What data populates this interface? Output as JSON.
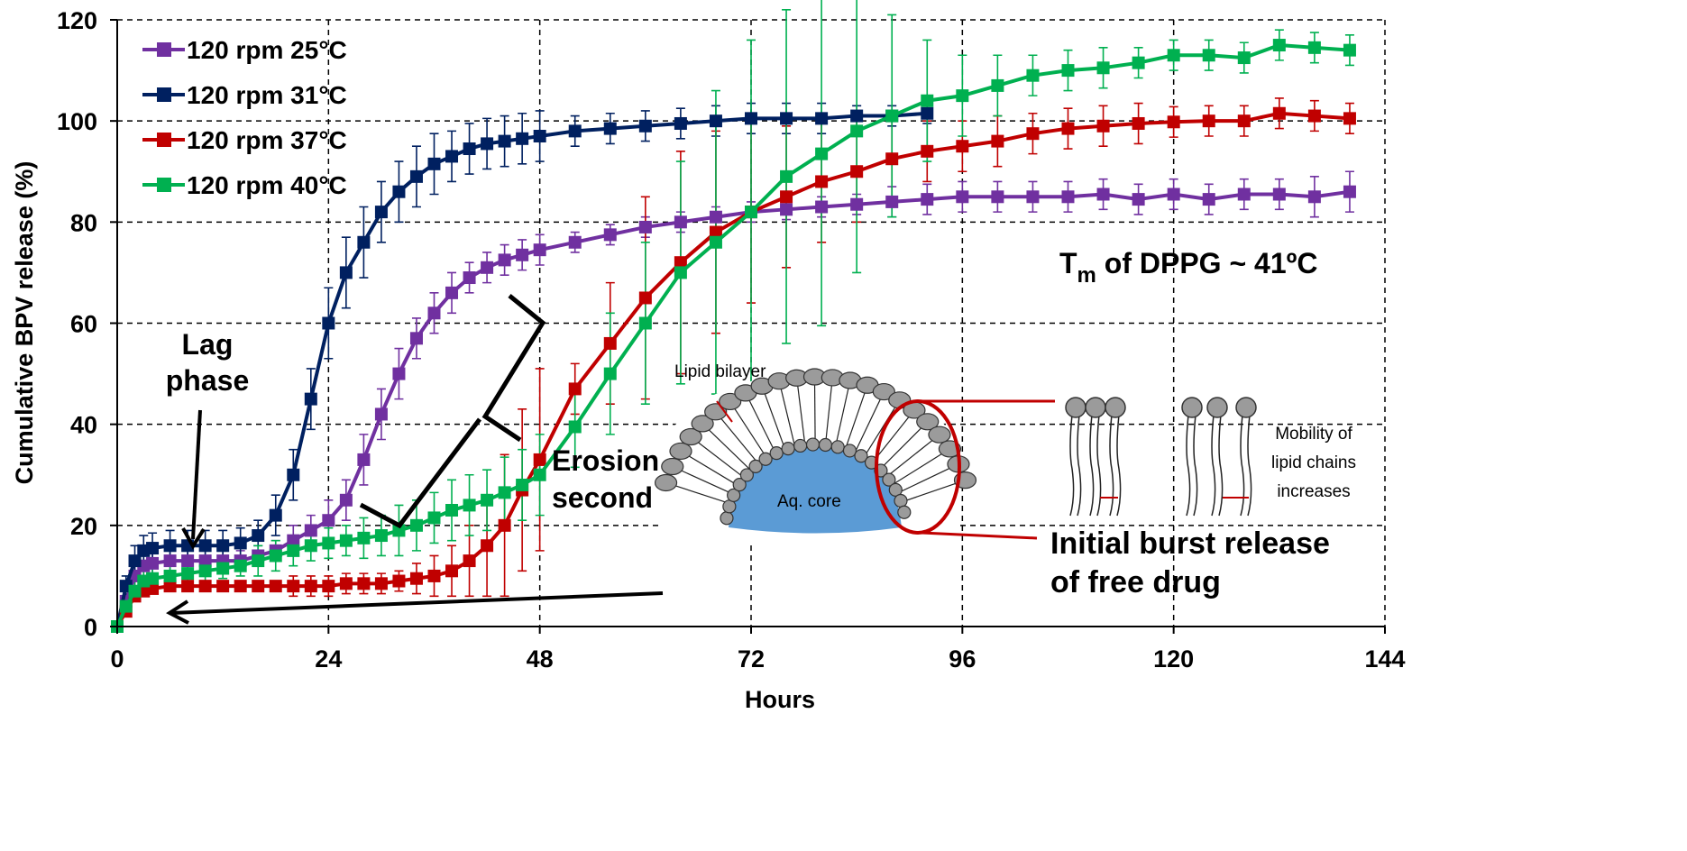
{
  "chart_data": {
    "type": "line",
    "xlabel": "Hours",
    "ylabel": "Cumulative BPV release (%)",
    "xlim": [
      0,
      144
    ],
    "xticks": [
      0,
      24,
      48,
      72,
      96,
      120,
      144
    ],
    "ylim": [
      0,
      120
    ],
    "yticks": [
      0,
      20,
      40,
      60,
      80,
      100,
      120
    ],
    "grid": true,
    "legend": "upper left",
    "x": [
      0,
      1,
      2,
      3,
      4,
      6,
      8,
      10,
      12,
      14,
      16,
      18,
      20,
      22,
      24,
      26,
      28,
      30,
      32,
      34,
      36,
      38,
      40,
      42,
      44,
      46,
      48,
      52,
      56,
      60,
      64,
      68,
      72,
      76,
      80,
      84,
      88,
      92,
      96,
      100,
      104,
      108,
      112,
      116,
      120,
      124,
      128,
      132,
      136,
      140
    ],
    "series": [
      {
        "name": "120 rpm 25°C",
        "color": "#7030a0",
        "values": [
          0,
          5,
          10,
          12,
          12.5,
          13,
          13,
          13,
          13,
          13,
          14,
          15,
          17,
          19,
          21,
          25,
          33,
          42,
          50,
          57,
          62,
          66,
          69,
          71,
          72.5,
          73.5,
          74.5,
          76,
          77.5,
          79,
          80,
          81,
          82,
          82.5,
          83,
          83.5,
          84,
          84.5,
          85,
          85,
          85,
          85,
          85.5,
          84.5,
          85.5,
          84.5,
          85.5,
          85.5,
          85,
          86
        ],
        "errors": [
          0,
          2,
          2,
          2,
          2,
          2,
          2,
          2,
          2,
          2,
          2,
          2,
          3,
          3,
          4,
          4,
          5,
          5,
          5,
          4,
          4,
          4,
          3,
          3,
          3,
          3,
          3,
          2,
          2,
          2,
          2,
          2,
          2,
          2,
          2,
          2,
          3,
          3,
          3,
          3,
          3,
          3,
          3,
          3,
          3,
          3,
          3,
          3,
          4,
          4
        ]
      },
      {
        "name": "120 rpm 31°C",
        "color": "#002060",
        "values": [
          0,
          8,
          13,
          15,
          15.5,
          16,
          16,
          16,
          16,
          16.5,
          18,
          22,
          30,
          45,
          60,
          70,
          76,
          82,
          86,
          89,
          91.5,
          93,
          94.5,
          95.5,
          96,
          96.5,
          97,
          98,
          98.5,
          99,
          99.5,
          100,
          100.5,
          100.5,
          100.5,
          101,
          101,
          101.5,
          null,
          null,
          null,
          null,
          null,
          null,
          null,
          null,
          null,
          null,
          null,
          null
        ],
        "errors": [
          0,
          2,
          3,
          3,
          3,
          3,
          3,
          3,
          3,
          3,
          3,
          4,
          5,
          6,
          7,
          7,
          7,
          6,
          6,
          6,
          6,
          5,
          5,
          5,
          5,
          5,
          5,
          3,
          3,
          3,
          3,
          3,
          3,
          3,
          3,
          2,
          2,
          2,
          null,
          null,
          null,
          null,
          null,
          null,
          null,
          null,
          null,
          null,
          null,
          null
        ]
      },
      {
        "name": "120 rpm 37°C",
        "color": "#c00000",
        "values": [
          0,
          3,
          6,
          7,
          7.5,
          8,
          8,
          8,
          8,
          8,
          8,
          8,
          8,
          8,
          8,
          8.5,
          8.5,
          8.5,
          9,
          9.5,
          10,
          11,
          13,
          16,
          20,
          27,
          33,
          47,
          56,
          65,
          72,
          78,
          82,
          85,
          88,
          90,
          92.5,
          94,
          95,
          96,
          97.5,
          98.5,
          99,
          99.5,
          99.8,
          100,
          100,
          101.5,
          101,
          100.5
        ],
        "errors": [
          0,
          1,
          1,
          1,
          1,
          1,
          1,
          1,
          1,
          1,
          1,
          1,
          2,
          2,
          2,
          2,
          2,
          2,
          2,
          3,
          4,
          5,
          7,
          10,
          14,
          16,
          18,
          5,
          12,
          20,
          22,
          20,
          18,
          14,
          12,
          10,
          8,
          6,
          5,
          5,
          4,
          4,
          4,
          4,
          3,
          3,
          3,
          3,
          3,
          3
        ]
      },
      {
        "name": "120 rpm 40°C",
        "color": "#00b050",
        "values": [
          0,
          4,
          7,
          9,
          9.5,
          10,
          10.5,
          11,
          11.5,
          12,
          13,
          14,
          15,
          16,
          16.5,
          17,
          17.5,
          18,
          19,
          20,
          21.5,
          23,
          24,
          25,
          26.5,
          28,
          30,
          39.5,
          50,
          60,
          70,
          76,
          82,
          89,
          93.5,
          98,
          101,
          104,
          105,
          107,
          109,
          110,
          110.5,
          111.5,
          113,
          113,
          112.5,
          115,
          114.5,
          114
        ],
        "errors": [
          0,
          1,
          2,
          2,
          2,
          2,
          2,
          2,
          2,
          2,
          3,
          3,
          3,
          3,
          3,
          3,
          4,
          4,
          5,
          5,
          5,
          6,
          6,
          6,
          7,
          7,
          8,
          8,
          12,
          16,
          22,
          30,
          34,
          33,
          34,
          28,
          20,
          12,
          8,
          6,
          4,
          4,
          4,
          3,
          3,
          3,
          3,
          3,
          3,
          3
        ]
      }
    ],
    "annotations": {
      "lag_phase": [
        "Lag",
        "phase"
      ],
      "tm": {
        "t": "T",
        "sub": "m",
        "rest": " of DPPG ~ 41ºC"
      },
      "erosion": [
        "Erosion",
        "second"
      ],
      "diagram": {
        "bilayer": "Lipid bilayer",
        "core": "Aq. core",
        "mobility": [
          "Mobility of",
          "lipid chains",
          "increases"
        ],
        "burst": [
          "Initial burst release",
          "of free drug"
        ]
      }
    }
  }
}
